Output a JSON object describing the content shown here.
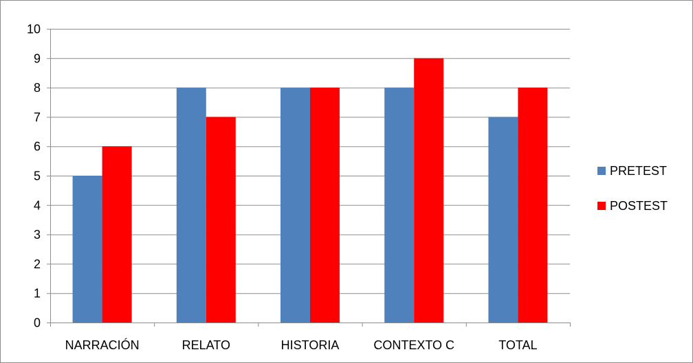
{
  "chart_data": {
    "type": "bar",
    "categories": [
      "NARRACIÓN",
      "RELATO",
      "HISTORIA",
      "CONTEXTO C",
      "TOTAL"
    ],
    "series": [
      {
        "name": "PRETEST",
        "values": [
          5,
          8,
          8,
          8,
          7
        ],
        "color": "#4f81bd"
      },
      {
        "name": "POSTEST",
        "values": [
          6,
          7,
          8,
          9,
          8
        ],
        "color": "#ff0000"
      }
    ],
    "ylim": [
      0,
      10
    ],
    "yticks": [
      "0",
      "1",
      "2",
      "3",
      "4",
      "5",
      "6",
      "7",
      "8",
      "9",
      "10"
    ],
    "grid": true,
    "legend_position": "right",
    "gridline_color": "#8c8c8c",
    "axis_color": "#8c8c8c"
  }
}
